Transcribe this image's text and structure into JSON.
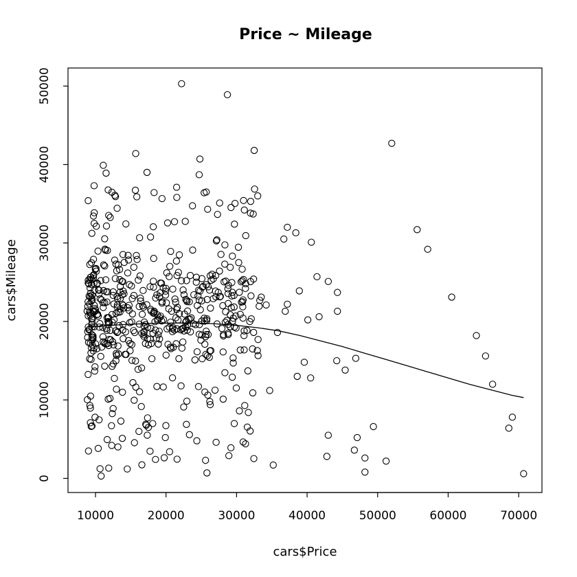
{
  "chart_data": {
    "type": "scatter",
    "title": "Price ~ Mileage",
    "xlabel": "cars$Price",
    "ylabel": "cars$Mileage",
    "xlim": [
      6100,
      73300
    ],
    "ylim": [
      -1800,
      52300
    ],
    "x_ticks": [
      10000,
      20000,
      30000,
      40000,
      50000,
      60000,
      70000
    ],
    "x_tick_labels": [
      "10000",
      "20000",
      "30000",
      "40000",
      "50000",
      "60000",
      "70000"
    ],
    "y_ticks": [
      0,
      10000,
      20000,
      30000,
      40000,
      50000
    ],
    "y_tick_labels": [
      "0",
      "10000",
      "20000",
      "30000",
      "40000",
      "50000"
    ],
    "grid": false,
    "smooth_curve": {
      "x": [
        9000,
        12000,
        15000,
        18000,
        21000,
        24000,
        27000,
        30000,
        33000,
        36000,
        39000,
        42000,
        45000,
        48000,
        51000,
        54000,
        57000,
        60000,
        63000,
        66000,
        69000,
        70700
      ],
      "y": [
        19300,
        19500,
        19650,
        19750,
        19800,
        19800,
        19700,
        19500,
        19200,
        18800,
        18200,
        17500,
        16800,
        16000,
        15200,
        14400,
        13600,
        12800,
        12000,
        11300,
        10600,
        10300
      ]
    },
    "points": {
      "x": [
        22200,
        28700,
        52000,
        32500,
        15700,
        24800,
        17300,
        11100,
        11500,
        9800,
        21500,
        24700,
        25700,
        25400,
        25900,
        33000,
        32000,
        27600,
        31100,
        55600,
        57100,
        29700,
        37200,
        38400,
        36700,
        40600,
        30300,
        44300,
        41400,
        43000,
        60500,
        37200,
        40100,
        41700,
        44300,
        64000,
        65300,
        38600,
        39600,
        44200,
        46900,
        45400,
        66300,
        69100,
        68600,
        49400,
        43000,
        47100,
        46700,
        48200,
        51200,
        42800,
        48200,
        70700,
        35200,
        25600,
        25800,
        27100,
        29200,
        10800,
        12300,
        13800,
        14500,
        9500,
        10200,
        12900,
        16800,
        18500,
        19200,
        20600,
        23300,
        26300,
        28400,
        30800,
        33500,
        35800,
        36900,
        38900,
        40500,
        14800,
        15900,
        17100,
        18700,
        20100,
        21600,
        22800,
        24100,
        26700,
        28800,
        31600,
        34200,
        13900,
        14200,
        16400,
        18300,
        19600,
        21200,
        23400,
        25500,
        27400,
        29100,
        11800,
        12500,
        13600,
        15300,
        17500,
        19900,
        22500,
        24600,
        26200,
        28100,
        30400,
        32300,
        34700
      ],
      "y": [
        50300,
        48900,
        42700,
        41800,
        41400,
        40700,
        39000,
        39900,
        38900,
        37300,
        37100,
        38700,
        36500,
        36400,
        34300,
        36000,
        35300,
        35100,
        34200,
        31700,
        29200,
        32400,
        32000,
        31300,
        30500,
        30100,
        27500,
        23700,
        25700,
        25100,
        23100,
        22200,
        20200,
        20600,
        21300,
        18200,
        15600,
        13000,
        14800,
        15000,
        15300,
        13800,
        12000,
        7800,
        6400,
        6600,
        5500,
        5200,
        3600,
        2600,
        2200,
        2800,
        800,
        600,
        1700,
        2300,
        700,
        4600,
        3900,
        300,
        4200,
        5100,
        1200,
        19300,
        24800,
        27300,
        21800,
        18900,
        24900,
        16700,
        22500,
        21700,
        19900,
        25200,
        23100,
        18600,
        21300,
        23900,
        12800,
        24700,
        27900,
        19600,
        23400,
        26200,
        21800,
        19300,
        15100,
        22900,
        18500,
        13700,
        22100,
        19600,
        15800,
        22600,
        21100,
        24300,
        18900,
        20300,
        17100,
        23700,
        26900,
        10100,
        8900,
        7300,
        12200,
        6500,
        5200,
        9100,
        11700,
        9800,
        10100,
        8600,
        10900,
        11200
      ]
    }
  }
}
